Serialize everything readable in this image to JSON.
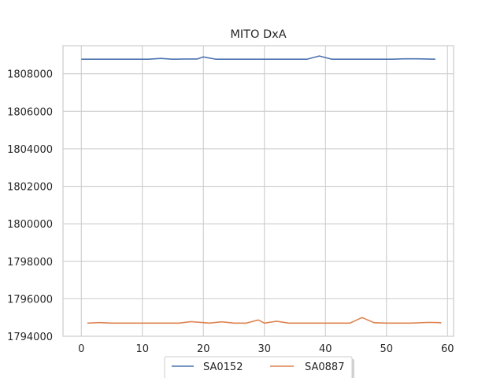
{
  "chart_data": {
    "type": "line",
    "title": "MITO DxA",
    "xlabel": "",
    "ylabel": "",
    "xlim": [
      -3,
      61
    ],
    "ylim": [
      1794000,
      1809500
    ],
    "xticks": [
      0,
      10,
      20,
      30,
      40,
      50,
      60
    ],
    "yticks": [
      1794000,
      1796000,
      1798000,
      1800000,
      1802000,
      1804000,
      1806000,
      1808000
    ],
    "grid": true,
    "legend_placement": "bottom-center",
    "series": [
      {
        "name": "SA0152",
        "color": "#4c72b0",
        "x": [
          0,
          2,
          4,
          6,
          8,
          10,
          11,
          13,
          15,
          17,
          19,
          20,
          22,
          24,
          26,
          28,
          30,
          32,
          34,
          36,
          37,
          39,
          41,
          43,
          45,
          47,
          49,
          51,
          53,
          55,
          58
        ],
        "y": [
          1808780,
          1808780,
          1808780,
          1808780,
          1808780,
          1808780,
          1808780,
          1808820,
          1808780,
          1808790,
          1808790,
          1808900,
          1808780,
          1808780,
          1808780,
          1808780,
          1808780,
          1808780,
          1808780,
          1808780,
          1808780,
          1808950,
          1808780,
          1808780,
          1808780,
          1808780,
          1808780,
          1808780,
          1808800,
          1808800,
          1808780
        ]
      },
      {
        "name": "SA0887",
        "color": "#dd8452",
        "x": [
          1,
          3,
          5,
          7,
          9,
          11,
          13,
          15,
          16,
          18,
          21,
          23,
          25,
          27,
          29,
          30,
          32,
          34,
          36,
          38,
          40,
          42,
          44,
          46,
          48,
          50,
          52,
          54,
          57,
          59
        ],
        "y": [
          1794700,
          1794730,
          1794700,
          1794700,
          1794700,
          1794700,
          1794700,
          1794700,
          1794700,
          1794780,
          1794700,
          1794770,
          1794700,
          1794700,
          1794870,
          1794700,
          1794800,
          1794700,
          1794700,
          1794700,
          1794700,
          1794700,
          1794700,
          1795000,
          1794720,
          1794700,
          1794700,
          1794700,
          1794740,
          1794720
        ]
      }
    ]
  }
}
